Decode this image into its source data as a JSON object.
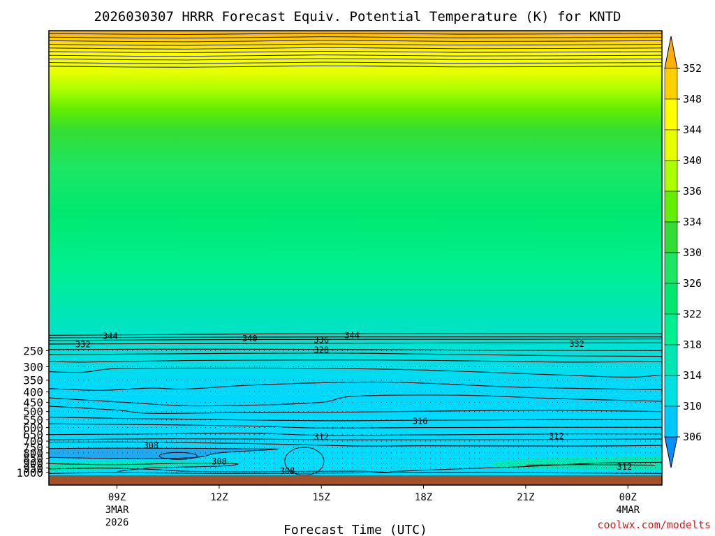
{
  "title": "2026030307 HRRR Forecast Equiv. Potential Temperature (K) for KNTD",
  "credit": "coolwx.com/modelts",
  "colors": {
    "ground": "#a0522d",
    "frame": "#000000",
    "contour": "#000000",
    "grid": "#000000",
    "credit": "#d02020",
    "colorbar": [
      "#0090ff",
      "#00c8ff",
      "#00e0e0",
      "#00e6b4",
      "#00f090",
      "#00e870",
      "#1ee664",
      "#33dd33",
      "#66ee00",
      "#aaff00",
      "#e6ff00",
      "#ffff00",
      "#ffd000",
      "#ffb000"
    ]
  },
  "chart_data": {
    "type": "heatmap",
    "title": "2026030307 HRRR Forecast Equiv. Potential Temperature (K) for KNTD",
    "xlabel": "Forecast Time (UTC)",
    "ylabel": "",
    "variable": "Equivalent Potential Temperature (K)",
    "y_scale": "log",
    "y_inverted": true,
    "x_hours_range": [
      7,
      25
    ],
    "x_ticks": [
      {
        "label": "09Z",
        "sub": [
          "3MAR",
          "2026"
        ]
      },
      {
        "label": "12Z",
        "sub": []
      },
      {
        "label": "15Z",
        "sub": []
      },
      {
        "label": "18Z",
        "sub": []
      },
      {
        "label": "21Z",
        "sub": []
      },
      {
        "label": "00Z",
        "sub": [
          "4MAR"
        ]
      }
    ],
    "y_ticks": [
      250,
      300,
      350,
      400,
      450,
      500,
      550,
      600,
      650,
      700,
      750,
      800,
      850,
      900,
      950,
      1000
    ],
    "colorbar_levels": [
      306,
      310,
      314,
      318,
      322,
      326,
      330,
      334,
      336,
      340,
      344,
      348,
      352
    ],
    "contour_labels": [
      {
        "value": 344,
        "hour": 8.8,
        "pressure": 212
      },
      {
        "value": 344,
        "hour": 15.9,
        "pressure": 210
      },
      {
        "value": 340,
        "hour": 12.9,
        "pressure": 218
      },
      {
        "value": 336,
        "hour": 15.0,
        "pressure": 221
      },
      {
        "value": 332,
        "hour": 8.0,
        "pressure": 233
      },
      {
        "value": 332,
        "hour": 22.5,
        "pressure": 232
      },
      {
        "value": 328,
        "hour": 15.0,
        "pressure": 248
      },
      {
        "value": 316,
        "hour": 17.9,
        "pressure": 557
      },
      {
        "value": 312,
        "hour": 15.0,
        "pressure": 666
      },
      {
        "value": 312,
        "hour": 21.9,
        "pressure": 661
      },
      {
        "value": 308,
        "hour": 10.0,
        "pressure": 738
      },
      {
        "value": 308,
        "hour": 12.0,
        "pressure": 886
      },
      {
        "value": 308,
        "hour": 14.0,
        "pressure": 983
      },
      {
        "value": 312,
        "hour": 23.9,
        "pressure": 940
      }
    ],
    "profiles": [
      {
        "value": 344,
        "levels": [
          [
            7,
            210
          ],
          [
            11,
            208
          ],
          [
            16,
            206
          ],
          [
            20,
            206
          ],
          [
            25,
            206
          ]
        ]
      },
      {
        "value": 340,
        "levels": [
          [
            7,
            216
          ],
          [
            11,
            215
          ],
          [
            16,
            214
          ],
          [
            20,
            214
          ],
          [
            25,
            214
          ]
        ]
      },
      {
        "value": 336,
        "levels": [
          [
            7,
            223
          ],
          [
            11,
            221
          ],
          [
            16,
            220
          ],
          [
            20,
            220
          ],
          [
            25,
            219
          ]
        ]
      },
      {
        "value": 332,
        "levels": [
          [
            7,
            232
          ],
          [
            11,
            231
          ],
          [
            16,
            230
          ],
          [
            20,
            229
          ],
          [
            25,
            229
          ]
        ]
      },
      {
        "value": 328,
        "levels": [
          [
            7,
            247
          ],
          [
            11,
            246
          ],
          [
            16,
            247
          ],
          [
            20,
            249
          ],
          [
            25,
            250
          ]
        ]
      },
      {
        "value": 326,
        "levels": [
          [
            7,
            262
          ],
          [
            11,
            259
          ],
          [
            15,
            257
          ],
          [
            18,
            260
          ],
          [
            22,
            265
          ],
          [
            25,
            267
          ]
        ]
      },
      {
        "value": 324,
        "levels": [
          [
            7,
            282
          ],
          [
            8,
            285
          ],
          [
            11,
            280
          ],
          [
            15,
            278
          ],
          [
            18,
            279
          ],
          [
            22,
            285
          ],
          [
            25,
            283
          ]
        ]
      },
      {
        "value": 322,
        "levels": [
          [
            7,
            318
          ],
          [
            8,
            320
          ],
          [
            9,
            307
          ],
          [
            12,
            305
          ],
          [
            15,
            306
          ],
          [
            18,
            312
          ],
          [
            22,
            330
          ],
          [
            24,
            338
          ],
          [
            25,
            330
          ]
        ]
      },
      {
        "value": 320,
        "levels": [
          [
            7,
            385
          ],
          [
            8.5,
            393
          ],
          [
            10,
            383
          ],
          [
            11,
            387
          ],
          [
            13,
            370
          ],
          [
            16,
            358
          ],
          [
            18,
            362
          ],
          [
            21,
            380
          ],
          [
            25,
            390
          ]
        ]
      },
      {
        "value": 318,
        "levels": [
          [
            7,
            428
          ],
          [
            9,
            448
          ],
          [
            11,
            468
          ],
          [
            13,
            465
          ],
          [
            15,
            450
          ],
          [
            16,
            420
          ],
          [
            19,
            415
          ],
          [
            22,
            432
          ],
          [
            25,
            445
          ]
        ]
      },
      {
        "value": 316,
        "levels": [
          [
            7,
            470
          ],
          [
            9,
            492
          ],
          [
            10,
            510
          ],
          [
            13,
            505
          ],
          [
            16,
            503
          ],
          [
            19,
            496
          ],
          [
            22,
            493
          ],
          [
            25,
            500
          ]
        ]
      },
      {
        "value": 314,
        "levels": [
          [
            7,
            533
          ],
          [
            9,
            540
          ],
          [
            12,
            548
          ],
          [
            15,
            555
          ],
          [
            18,
            552
          ],
          [
            22,
            548
          ],
          [
            25,
            548
          ]
        ]
      },
      {
        "value": 313,
        "levels": [
          [
            7,
            575
          ],
          [
            10,
            580
          ],
          [
            13,
            590
          ],
          [
            15,
            603
          ],
          [
            18,
            600
          ],
          [
            22,
            598
          ],
          [
            25,
            598
          ]
        ]
      },
      {
        "value": 312,
        "levels": [
          [
            7,
            650
          ],
          [
            10,
            645
          ],
          [
            13,
            640
          ],
          [
            15,
            655
          ],
          [
            18,
            652
          ],
          [
            22,
            645
          ],
          [
            25,
            645
          ]
        ]
      },
      {
        "value": 310,
        "levels": [
          [
            7,
            690
          ],
          [
            10,
            682
          ],
          [
            13,
            684
          ],
          [
            16,
            690
          ],
          [
            20,
            688
          ],
          [
            25,
            684
          ]
        ]
      },
      {
        "value": 308,
        "levels": [
          [
            7,
            708
          ],
          [
            10,
            708
          ],
          [
            13,
            720
          ],
          [
            16,
            740
          ],
          [
            18,
            738
          ],
          [
            21,
            740
          ],
          [
            23,
            740
          ],
          [
            25,
            735
          ]
        ]
      }
    ],
    "surface_pressure_range": [
      1000,
      1040
    ]
  }
}
